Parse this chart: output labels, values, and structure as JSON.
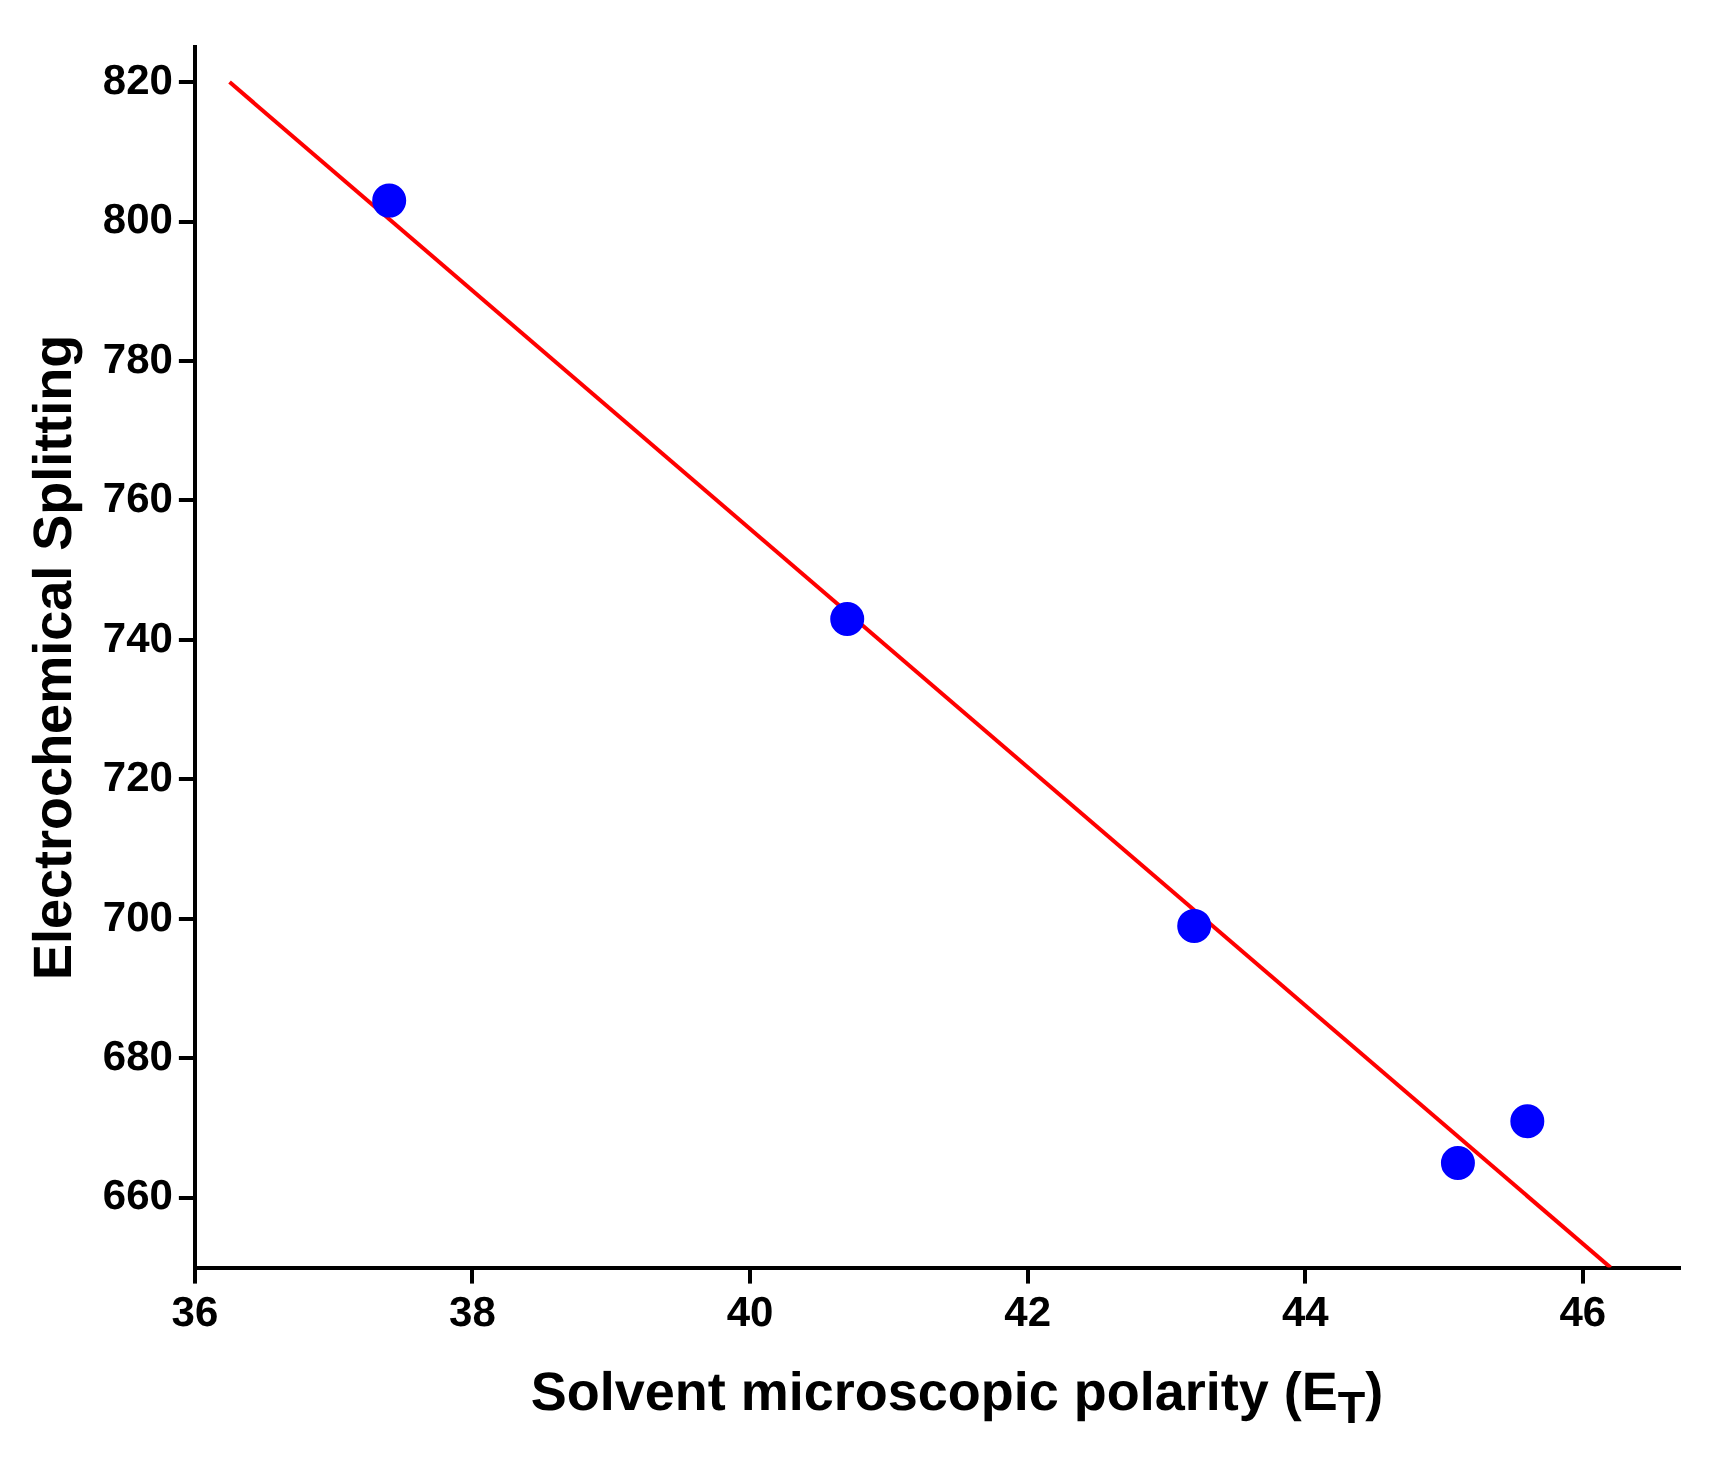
{
  "chart_data": {
    "type": "scatter",
    "xlabel": "Solvent microscopic polarity (E$_{T}$)",
    "ylabel": "Electrochemical Splitting",
    "series": [
      {
        "color": "#0000ff",
        "x": [
          37.4,
          40.7,
          43.2,
          45.1,
          45.6
        ],
        "values": [
          803,
          743,
          699,
          665,
          671
        ],
        "marker": "circle"
      },
      {
        "type": "line",
        "color": "#ff0000",
        "x": [
          36.25,
          46.2
        ],
        "values": [
          820,
          650
        ],
        "marker": "none"
      }
    ],
    "xlim": [
      36,
      46.7
    ],
    "xticks": [
      36,
      38,
      40,
      42,
      44,
      46
    ],
    "ylim": [
      650,
      825
    ],
    "yticks": [
      660,
      680,
      700,
      720,
      740,
      760,
      780,
      800,
      820
    ],
    "grid": false,
    "legend": false
  }
}
